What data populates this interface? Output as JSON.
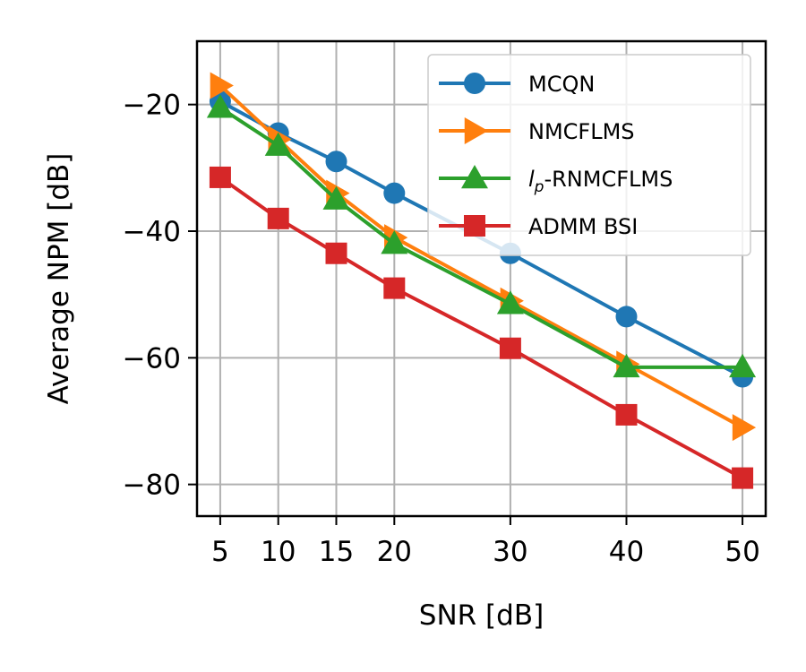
{
  "chart_data": {
    "type": "line",
    "title": "",
    "xlabel": "SNR [dB]",
    "ylabel": "Average NPM [dB]",
    "x": [
      5,
      10,
      15,
      20,
      30,
      40,
      50
    ],
    "xticks": [
      5,
      10,
      15,
      20,
      30,
      40,
      50
    ],
    "yticks": [
      -20,
      -40,
      -60,
      -80
    ],
    "xlim": [
      3.0,
      52.0
    ],
    "ylim": [
      -85.0,
      -10.0
    ],
    "grid": true,
    "legend_position": "top-right",
    "series": [
      {
        "name": "MCQN",
        "color": "#1f77b4",
        "marker": "circle",
        "values": [
          -19.5,
          -24.5,
          -29.0,
          -34.0,
          -43.5,
          -53.5,
          -63.0
        ]
      },
      {
        "name": "NMCFLMS",
        "color": "#ff7f0e",
        "marker": "triangle-right",
        "values": [
          -17.0,
          -25.5,
          -34.0,
          -41.0,
          -51.0,
          -61.0,
          -71.0
        ]
      },
      {
        "name": "lp-RNMCFLMS",
        "name_main": "l",
        "name_sub": "p",
        "name_rest": "-RNMCFLMS",
        "color": "#2ca02c",
        "marker": "triangle-up",
        "values": [
          -20.5,
          -26.5,
          -35.0,
          -42.0,
          -51.5,
          -61.5,
          -61.5
        ]
      },
      {
        "name": "ADMM BSI",
        "color": "#d62728",
        "marker": "square",
        "values": [
          -31.5,
          -38.0,
          -43.5,
          -49.0,
          -58.5,
          -69.0,
          -79.0
        ]
      }
    ]
  }
}
